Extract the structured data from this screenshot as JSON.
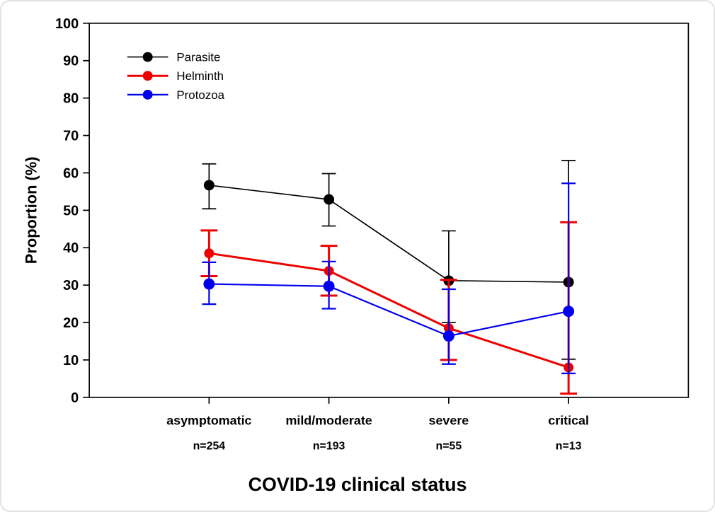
{
  "figure": {
    "background": "#ffffff",
    "border_color": "#e3e3e3"
  },
  "chart_data": {
    "type": "line",
    "title": "",
    "xlabel": "COVID-19 clinical status",
    "ylabel": "Proportion (%)",
    "ylim": [
      0,
      100
    ],
    "yticks": [
      0,
      10,
      20,
      30,
      40,
      50,
      60,
      70,
      80,
      90,
      100
    ],
    "grid": false,
    "legend_position": "top-left-inside",
    "categories": [
      "asymptomatic",
      "mild/moderate",
      "severe",
      "critical"
    ],
    "category_counts": [
      "n=254",
      "n=193",
      "n=55",
      "n=13"
    ],
    "error_bar_type": "confidence-interval",
    "series": [
      {
        "name": "Parasite",
        "color": "#000000",
        "values": [
          56.7,
          52.9,
          31.2,
          30.8
        ],
        "ci_low": [
          50.4,
          45.8,
          20.0,
          10.2
        ],
        "ci_high": [
          62.4,
          59.8,
          44.5,
          63.3
        ]
      },
      {
        "name": "Helminth",
        "color": "#ee0000",
        "values": [
          38.5,
          33.8,
          18.5,
          8.0
        ],
        "ci_low": [
          32.4,
          27.2,
          10.0,
          1.0
        ],
        "ci_high": [
          44.6,
          40.5,
          31.4,
          46.8
        ]
      },
      {
        "name": "Protozoa",
        "color": "#0000ee",
        "values": [
          30.3,
          29.7,
          16.4,
          23.0
        ],
        "ci_low": [
          24.9,
          23.7,
          8.9,
          6.4
        ],
        "ci_high": [
          36.1,
          36.3,
          28.9,
          57.2
        ]
      }
    ]
  }
}
